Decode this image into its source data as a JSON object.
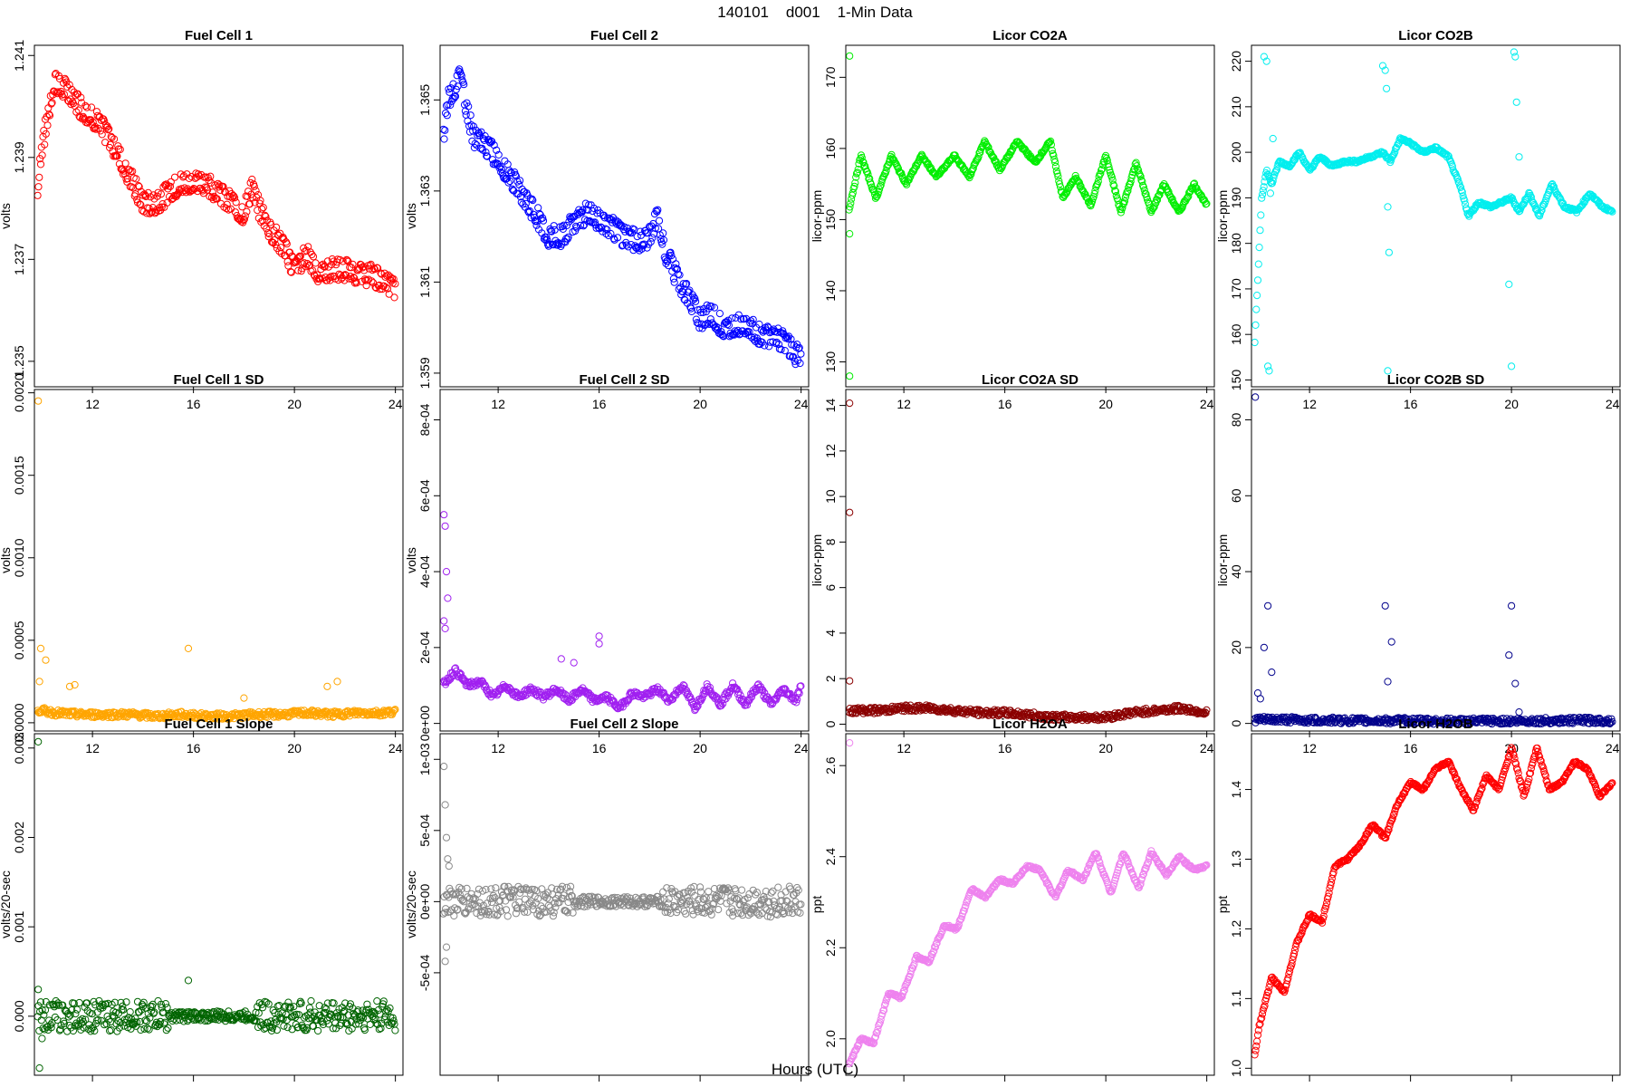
{
  "figure": {
    "title": "140101    d001    1-Min Data",
    "xlabel": "Hours (UTC)"
  },
  "chart_data": [
    {
      "type": "scatter",
      "title": "Fuel Cell 1",
      "ylabel": "volts",
      "color": "#ff0000",
      "xlim": [
        9.7,
        24.3
      ],
      "ylim": [
        1.2345,
        1.2412
      ],
      "xticks": [
        "12",
        "16",
        "20",
        "24"
      ],
      "yticks": [
        "1.235",
        "1.237",
        "1.239",
        "1.241"
      ],
      "ytick_values": [
        1.235,
        1.237,
        1.239,
        1.241
      ],
      "series": {
        "x": [
          9.8,
          10.0,
          10.5,
          11.0,
          11.5,
          12.0,
          12.5,
          13.0,
          13.5,
          14.0,
          14.5,
          15.0,
          15.5,
          16.0,
          16.5,
          17.0,
          17.5,
          18.0,
          18.3,
          18.6,
          19.0,
          19.5,
          20.0,
          20.5,
          21.0,
          21.5,
          22.0,
          22.5,
          23.0,
          23.5,
          24.0
        ],
        "y": [
          1.2383,
          1.2392,
          1.2405,
          1.2403,
          1.24,
          1.2398,
          1.2395,
          1.2391,
          1.2386,
          1.2381,
          1.2381,
          1.2383,
          1.2385,
          1.2385,
          1.2385,
          1.2383,
          1.2381,
          1.2379,
          1.2384,
          1.238,
          1.2376,
          1.2373,
          1.2368,
          1.2371,
          1.2367,
          1.2368,
          1.2368,
          1.2367,
          1.2367,
          1.2366,
          1.2364
        ]
      }
    },
    {
      "type": "scatter",
      "title": "Fuel Cell 2",
      "ylabel": "volts",
      "color": "#0000ff",
      "xlim": [
        9.7,
        24.3
      ],
      "ylim": [
        1.3587,
        1.3662
      ],
      "xticks": [
        "12",
        "16",
        "20",
        "24"
      ],
      "yticks": [
        "1.359",
        "1.361",
        "1.363",
        "1.365"
      ],
      "ytick_values": [
        1.359,
        1.361,
        1.363,
        1.365
      ],
      "series": {
        "x": [
          9.8,
          10.0,
          10.5,
          11.0,
          11.5,
          12.0,
          12.5,
          13.0,
          13.5,
          14.0,
          14.5,
          15.0,
          15.5,
          16.0,
          16.5,
          17.0,
          17.5,
          18.0,
          18.3,
          18.6,
          19.0,
          19.5,
          20.0,
          20.5,
          21.0,
          21.5,
          22.0,
          22.5,
          23.0,
          23.5,
          24.0
        ],
        "y": [
          1.364,
          1.365,
          1.3655,
          1.3642,
          1.364,
          1.3637,
          1.3633,
          1.3629,
          1.3625,
          1.362,
          1.362,
          1.3623,
          1.3625,
          1.3624,
          1.3622,
          1.362,
          1.3619,
          1.362,
          1.3624,
          1.3617,
          1.3612,
          1.3607,
          1.3602,
          1.3603,
          1.3599,
          1.3601,
          1.36,
          1.3598,
          1.3598,
          1.3596,
          1.3593
        ]
      }
    },
    {
      "type": "scatter",
      "title": "Licor CO2A",
      "ylabel": "licor-ppm",
      "color": "#00ee00",
      "xlim": [
        9.7,
        24.3
      ],
      "ylim": [
        126.5,
        174.5
      ],
      "xticks": [
        "12",
        "16",
        "20",
        "24"
      ],
      "yticks": [
        "130",
        "140",
        "150",
        "160",
        "170"
      ],
      "ytick_values": [
        130,
        140,
        150,
        160,
        170
      ],
      "outliers": {
        "x": [
          9.85,
          9.85,
          9.85
        ],
        "y": [
          173,
          148,
          128
        ]
      },
      "series": {
        "x": [
          9.8,
          10.3,
          10.9,
          11.5,
          12.1,
          12.7,
          13.3,
          14.0,
          14.6,
          15.2,
          15.8,
          16.5,
          17.2,
          17.8,
          18.3,
          18.8,
          19.4,
          20.0,
          20.6,
          21.2,
          21.8,
          22.3,
          22.9,
          23.5,
          24.0
        ],
        "y": [
          151,
          159,
          153,
          159,
          155,
          159,
          156,
          159,
          156,
          161,
          157,
          161,
          158,
          161,
          153,
          156,
          152,
          159,
          151,
          158,
          151,
          155,
          151,
          155,
          152
        ]
      }
    },
    {
      "type": "scatter",
      "title": "Licor CO2B",
      "ylabel": "licor-ppm",
      "color": "#00eeee",
      "xlim": [
        9.7,
        24.3
      ],
      "ylim": [
        148.5,
        223.5
      ],
      "xticks": [
        "12",
        "16",
        "20",
        "24"
      ],
      "yticks": [
        "150",
        "160",
        "170",
        "180",
        "190",
        "200",
        "210",
        "220"
      ],
      "ytick_values": [
        150,
        160,
        170,
        180,
        190,
        200,
        210,
        220
      ],
      "outliers": {
        "x": [
          10.2,
          10.3,
          10.35,
          10.4,
          10.45,
          10.55,
          14.9,
          15.0,
          15.05,
          15.1,
          15.1,
          15.15,
          19.9,
          20.0,
          20.1,
          20.15,
          20.2,
          20.3
        ],
        "y": [
          221,
          220,
          153,
          152,
          191,
          203,
          219,
          218,
          214,
          188,
          152,
          178,
          171,
          153,
          222,
          221,
          211,
          199
        ]
      },
      "series": {
        "x": [
          9.8,
          9.95,
          10.1,
          10.3,
          10.5,
          10.8,
          11.2,
          11.6,
          12.0,
          12.4,
          12.9,
          13.4,
          13.9,
          14.4,
          14.9,
          15.2,
          15.6,
          16.0,
          16.5,
          17.0,
          17.5,
          18.0,
          18.3,
          18.7,
          19.2,
          19.6,
          20.0,
          20.3,
          20.7,
          21.1,
          21.6,
          22.1,
          22.6,
          23.1,
          23.6,
          24.0
        ],
        "y": [
          155,
          172,
          190,
          196,
          193,
          198,
          197,
          200,
          196,
          199,
          197,
          198,
          198,
          199,
          200,
          198,
          203,
          202,
          200,
          201,
          199,
          192,
          186,
          189,
          188,
          189,
          190,
          187,
          191,
          186,
          193,
          188,
          187,
          191,
          188,
          187
        ]
      }
    },
    {
      "type": "scatter",
      "title": "Fuel Cell 1 SD",
      "ylabel": "volts",
      "color": "#ffa500",
      "xlim": [
        9.7,
        24.3
      ],
      "ylim": [
        -5e-05,
        0.00202
      ],
      "xticks": [
        "12",
        "16",
        "20",
        "24"
      ],
      "yticks": [
        "0.0000",
        "0.0005",
        "0.0010",
        "0.0015",
        "0.0020"
      ],
      "ytick_values": [
        0,
        0.0005,
        0.001,
        0.0015,
        0.002
      ],
      "outliers": {
        "x": [
          9.85,
          9.95,
          10.15,
          9.9,
          11.1,
          11.3,
          15.8,
          18.0,
          21.3,
          21.7
        ],
        "y": [
          0.00195,
          0.00045,
          0.00038,
          0.00025,
          0.00022,
          0.00023,
          0.00045,
          0.00015,
          0.00022,
          0.00025
        ]
      },
      "series": {
        "x": [
          9.8,
          10.5,
          11.5,
          12.5,
          13.5,
          14.5,
          15.5,
          16.5,
          17.5,
          18.5,
          19.5,
          20.5,
          21.5,
          22.5,
          23.5,
          24.0
        ],
        "y": [
          8e-05,
          6e-05,
          5e-05,
          5e-05,
          5e-05,
          4e-05,
          5e-05,
          4e-05,
          4e-05,
          5e-05,
          5e-05,
          6e-05,
          5e-05,
          6e-05,
          6e-05,
          7e-05
        ]
      }
    },
    {
      "type": "scatter",
      "title": "Fuel Cell 2 SD",
      "ylabel": "volts",
      "color": "#a020f0",
      "xlim": [
        9.7,
        24.3
      ],
      "ylim": [
        -2e-05,
        0.00088
      ],
      "xticks": [
        "12",
        "16",
        "20",
        "24"
      ],
      "yticks": [
        "0e+00",
        "2e-04",
        "4e-04",
        "6e-04",
        "8e-04"
      ],
      "ytick_values": [
        0,
        0.0002,
        0.0004,
        0.0006,
        0.0008
      ],
      "outliers": {
        "x": [
          9.8,
          9.85,
          9.9,
          9.95,
          10.0,
          9.85,
          9.9,
          16.0,
          16.0,
          15.0,
          14.5
        ],
        "y": [
          0.00086,
          0.00055,
          0.00052,
          0.0004,
          0.00033,
          0.00027,
          0.00025,
          0.00023,
          0.00021,
          0.00016,
          0.00017
        ]
      },
      "series": {
        "x": [
          9.8,
          10.3,
          10.8,
          11.3,
          11.8,
          12.3,
          12.8,
          13.3,
          13.8,
          14.3,
          14.8,
          15.3,
          15.8,
          16.3,
          16.8,
          17.3,
          17.8,
          18.3,
          18.8,
          19.3,
          19.8,
          20.3,
          20.8,
          21.3,
          21.8,
          22.3,
          22.8,
          23.3,
          23.8,
          24.0
        ],
        "y": [
          0.0001,
          0.00014,
          0.0001,
          0.00011,
          7e-05,
          0.0001,
          7e-05,
          9e-05,
          7e-05,
          9e-05,
          6e-05,
          9e-05,
          6e-05,
          7e-05,
          4e-05,
          8e-05,
          7e-05,
          9e-05,
          6e-05,
          0.0001,
          4e-05,
          0.0001,
          5e-05,
          0.0001,
          5e-05,
          0.0001,
          5e-05,
          9e-05,
          6e-05,
          0.0001
        ]
      }
    },
    {
      "type": "scatter",
      "title": "Licor CO2A SD",
      "ylabel": "licor-ppm",
      "color": "#8b0000",
      "xlim": [
        9.7,
        24.3
      ],
      "ylim": [
        -0.3,
        14.7
      ],
      "xticks": [
        "12",
        "16",
        "20",
        "24"
      ],
      "yticks": [
        "0",
        "2",
        "4",
        "6",
        "8",
        "10",
        "12",
        "14"
      ],
      "ytick_values": [
        0,
        2,
        4,
        6,
        8,
        10,
        12,
        14
      ],
      "outliers": {
        "x": [
          9.85,
          9.85,
          9.85
        ],
        "y": [
          14.1,
          9.3,
          1.9
        ]
      },
      "series": {
        "x": [
          9.8,
          11,
          12,
          13,
          14,
          15,
          16,
          17,
          18,
          19,
          20,
          21,
          22,
          23,
          24
        ],
        "y": [
          0.6,
          0.6,
          0.7,
          0.7,
          0.6,
          0.5,
          0.5,
          0.4,
          0.3,
          0.3,
          0.3,
          0.5,
          0.6,
          0.7,
          0.5
        ]
      }
    },
    {
      "type": "scatter",
      "title": "Licor CO2B SD",
      "ylabel": "licor-ppm",
      "color": "#00008b",
      "xlim": [
        9.7,
        24.3
      ],
      "ylim": [
        -2,
        88
      ],
      "xticks": [
        "12",
        "16",
        "20",
        "24"
      ],
      "yticks": [
        "0",
        "20",
        "40",
        "60",
        "80"
      ],
      "ytick_values": [
        0,
        20,
        40,
        60,
        80
      ],
      "outliers": {
        "x": [
          9.85,
          10.2,
          10.35,
          10.5,
          9.95,
          10.05,
          15.0,
          15.1,
          15.25,
          19.9,
          20.0,
          20.15,
          20.3
        ],
        "y": [
          86,
          20,
          31,
          13.5,
          8,
          6.5,
          31,
          11,
          21.5,
          18,
          31,
          10.5,
          3
        ]
      },
      "series": {
        "x": [
          9.8,
          11,
          12,
          13,
          14,
          15,
          16,
          17,
          18,
          19,
          20,
          21,
          22,
          23,
          24
        ],
        "y": [
          1,
          1,
          0.8,
          0.8,
          0.7,
          0.7,
          0.7,
          0.6,
          0.6,
          0.6,
          0.6,
          0.7,
          0.7,
          0.8,
          0.7
        ]
      }
    },
    {
      "type": "scatter",
      "title": "Fuel Cell 1 Slope",
      "ylabel": "volts/20-sec",
      "color": "#006400",
      "xlim": [
        9.7,
        24.3
      ],
      "ylim": [
        -0.00066,
        0.00316
      ],
      "xticks": [
        "12",
        "16",
        "20",
        "24"
      ],
      "yticks": [
        "0.000",
        "0.001",
        "0.002",
        "0.003"
      ],
      "ytick_values": [
        0,
        0.001,
        0.002,
        0.003
      ],
      "outliers": {
        "x": [
          9.85,
          9.9,
          15.8,
          9.85,
          10.0
        ],
        "y": [
          0.00307,
          -0.00058,
          0.0004,
          0.0003,
          -0.00025
        ]
      },
      "series": {
        "x": [
          9.8,
          12,
          14,
          16,
          18,
          20,
          22,
          24
        ],
        "y": [
          0,
          0,
          0,
          0,
          0,
          0,
          0,
          0
        ]
      }
    },
    {
      "type": "scatter",
      "title": "Fuel Cell 2 Slope",
      "ylabel": "volts/20-sec",
      "color": "#888888",
      "xlim": [
        9.7,
        24.3
      ],
      "ylim": [
        -0.00122,
        0.00118
      ],
      "xticks": [
        "12",
        "16",
        "20",
        "24"
      ],
      "yticks": [
        "-5e-04",
        "0e+00",
        "5e-04",
        "1e-03"
      ],
      "ytick_values": [
        -0.0005,
        0,
        0.0005,
        0.001
      ],
      "outliers": {
        "x": [
          9.8,
          9.85,
          9.9,
          9.95,
          10.0,
          9.8,
          9.9,
          9.95,
          10.05
        ],
        "y": [
          0.00114,
          0.00095,
          0.00068,
          0.00045,
          0.0003,
          -0.00115,
          -0.00042,
          -0.00032,
          0.00025
        ]
      },
      "series": {
        "x": [
          9.8,
          12,
          14,
          16,
          18,
          20,
          22,
          24
        ],
        "y": [
          0,
          0,
          0,
          0,
          0,
          0,
          0,
          0
        ]
      }
    },
    {
      "type": "scatter",
      "title": "Licor H2OA",
      "ylabel": "ppt",
      "color": "#ee82ee",
      "xlim": [
        9.7,
        24.3
      ],
      "ylim": [
        1.92,
        2.67
      ],
      "xticks": [
        "12",
        "16",
        "20",
        "24"
      ],
      "yticks": [
        "2.0",
        "2.2",
        "2.4",
        "2.6"
      ],
      "ytick_values": [
        2.0,
        2.2,
        2.4,
        2.6
      ],
      "outliers": {
        "x": [
          9.85
        ],
        "y": [
          2.65
        ]
      },
      "series": {
        "x": [
          9.8,
          10.3,
          10.8,
          11.4,
          11.9,
          12.5,
          13.0,
          13.6,
          14.1,
          14.7,
          15.2,
          15.8,
          16.3,
          16.9,
          17.4,
          18.0,
          18.5,
          19.1,
          19.6,
          20.2,
          20.7,
          21.3,
          21.8,
          22.4,
          22.9,
          23.5,
          24.0
        ],
        "y": [
          1.94,
          2.0,
          1.99,
          2.1,
          2.09,
          2.18,
          2.17,
          2.25,
          2.24,
          2.33,
          2.31,
          2.35,
          2.34,
          2.38,
          2.37,
          2.31,
          2.37,
          2.35,
          2.41,
          2.32,
          2.41,
          2.33,
          2.41,
          2.36,
          2.4,
          2.37,
          2.38
        ]
      }
    },
    {
      "type": "scatter",
      "title": "Licor H2OB",
      "ylabel": "ppt",
      "color": "#ff0000",
      "xlim": [
        9.7,
        24.3
      ],
      "ylim": [
        0.99,
        1.48
      ],
      "xticks": [
        "12",
        "16",
        "20",
        "24"
      ],
      "yticks": [
        "1.0",
        "1.1",
        "1.2",
        "1.3",
        "1.4"
      ],
      "ytick_values": [
        1.0,
        1.1,
        1.2,
        1.3,
        1.4
      ],
      "series": {
        "x": [
          9.8,
          10.0,
          10.5,
          11.0,
          11.5,
          12.0,
          12.5,
          13.0,
          13.5,
          14.0,
          14.5,
          15.0,
          15.5,
          16.0,
          16.5,
          17.0,
          17.5,
          18.0,
          18.5,
          19.0,
          19.5,
          20.0,
          20.5,
          21.0,
          21.5,
          22.0,
          22.5,
          23.0,
          23.5,
          24.0
        ],
        "y": [
          1.01,
          1.06,
          1.13,
          1.11,
          1.18,
          1.22,
          1.21,
          1.29,
          1.3,
          1.32,
          1.35,
          1.33,
          1.38,
          1.41,
          1.4,
          1.43,
          1.44,
          1.4,
          1.37,
          1.42,
          1.4,
          1.46,
          1.39,
          1.46,
          1.4,
          1.41,
          1.44,
          1.43,
          1.39,
          1.41
        ]
      }
    }
  ]
}
